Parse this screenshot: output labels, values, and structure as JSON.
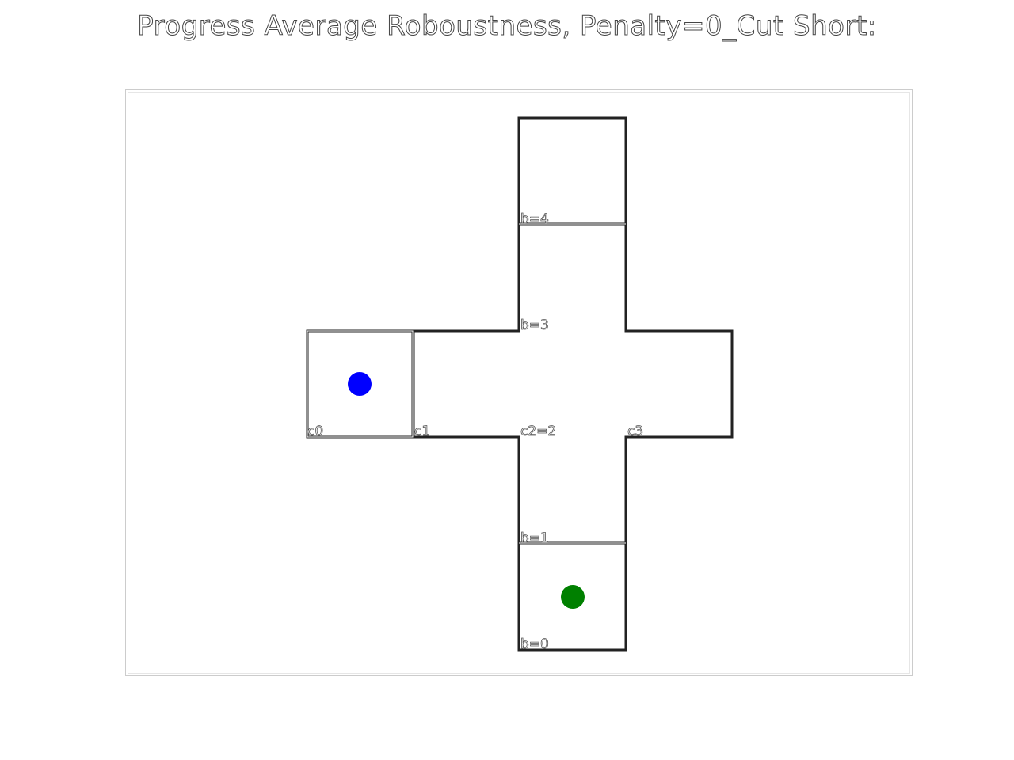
{
  "title": "Progress Average Roboustness, Penalty=0_Cut Short:",
  "cells": [
    {
      "id": "b4",
      "label": "b=4"
    },
    {
      "id": "b3",
      "label": "b=3"
    },
    {
      "id": "c0",
      "label": "c0"
    },
    {
      "id": "c1",
      "label": "c1"
    },
    {
      "id": "c2",
      "label": "c2=2"
    },
    {
      "id": "c3",
      "label": "c3"
    },
    {
      "id": "b1",
      "label": "b=1"
    },
    {
      "id": "b0",
      "label": "b=0"
    }
  ],
  "markers": [
    {
      "id": "agent",
      "cell": "c0",
      "color": "#0000ff"
    },
    {
      "id": "goal",
      "cell": "b0",
      "color": "#008000"
    }
  ],
  "colors": {
    "outline": "#222222",
    "frame": "#cccccc",
    "label_stroke": "#555555"
  }
}
